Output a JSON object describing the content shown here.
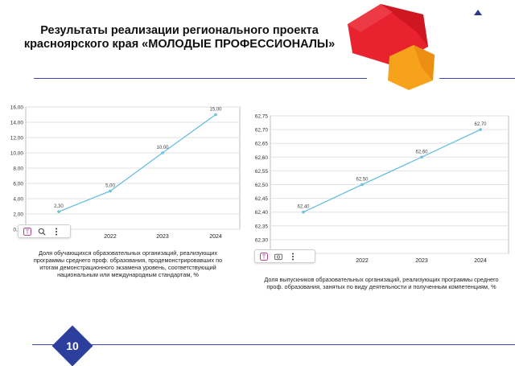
{
  "header": {
    "title": "Результаты реализации регионального проекта красноярского края «МОЛОДЫЕ ПРОФЕССИОНАЛЫ»"
  },
  "colors": {
    "rule": "#3a47b0",
    "line": "#6bbfe0",
    "cube_red": "#e8232f",
    "cube_orange": "#f7a21b",
    "badge": "#2d3f9c"
  },
  "footer": {
    "page_number": "10"
  },
  "toolbar_left": {
    "icons": [
      "text-tool-icon",
      "image-search-icon",
      "more-icon"
    ]
  },
  "toolbar_right": {
    "icons": [
      "text-tool-icon",
      "image-search-icon",
      "more-icon"
    ]
  },
  "chart_data": [
    {
      "type": "line",
      "categories": [
        "2021",
        "2022",
        "2023",
        "2024"
      ],
      "values": [
        2.3,
        5.0,
        10.0,
        15.0
      ],
      "point_labels": [
        "2,30",
        "5,00",
        "10,00",
        "15,00"
      ],
      "yticks": [
        "0,00",
        "2,00",
        "4,00",
        "6,00",
        "8,00",
        "10,00",
        "12,00",
        "14,00",
        "16,00"
      ],
      "ylim": [
        0,
        16
      ],
      "grid": true,
      "caption": "Доля обучающихся образовательных организаций, реализующих программы среднего проф. образования, продемонстрировавших по итогам демонстрационного экзамена уровень, соответствующий национальным или международным стандартам, %"
    },
    {
      "type": "line",
      "categories": [
        "2021",
        "2022",
        "2023",
        "2024"
      ],
      "values": [
        62.4,
        62.5,
        62.6,
        62.7
      ],
      "point_labels": [
        "62,40",
        "62,50",
        "62,60",
        "62,70"
      ],
      "yticks": [
        "62,25",
        "62,30",
        "62,35",
        "62,40",
        "62,45",
        "62,50",
        "62,55",
        "62,60",
        "62,65",
        "62,70",
        "62,75"
      ],
      "ylim": [
        62.25,
        62.75
      ],
      "grid": true,
      "caption": "Доля выпускников образовательных организаций, реализующих программы среднего проф. образования, занятых по виду деятельности и полученным компетенциям, %"
    }
  ]
}
